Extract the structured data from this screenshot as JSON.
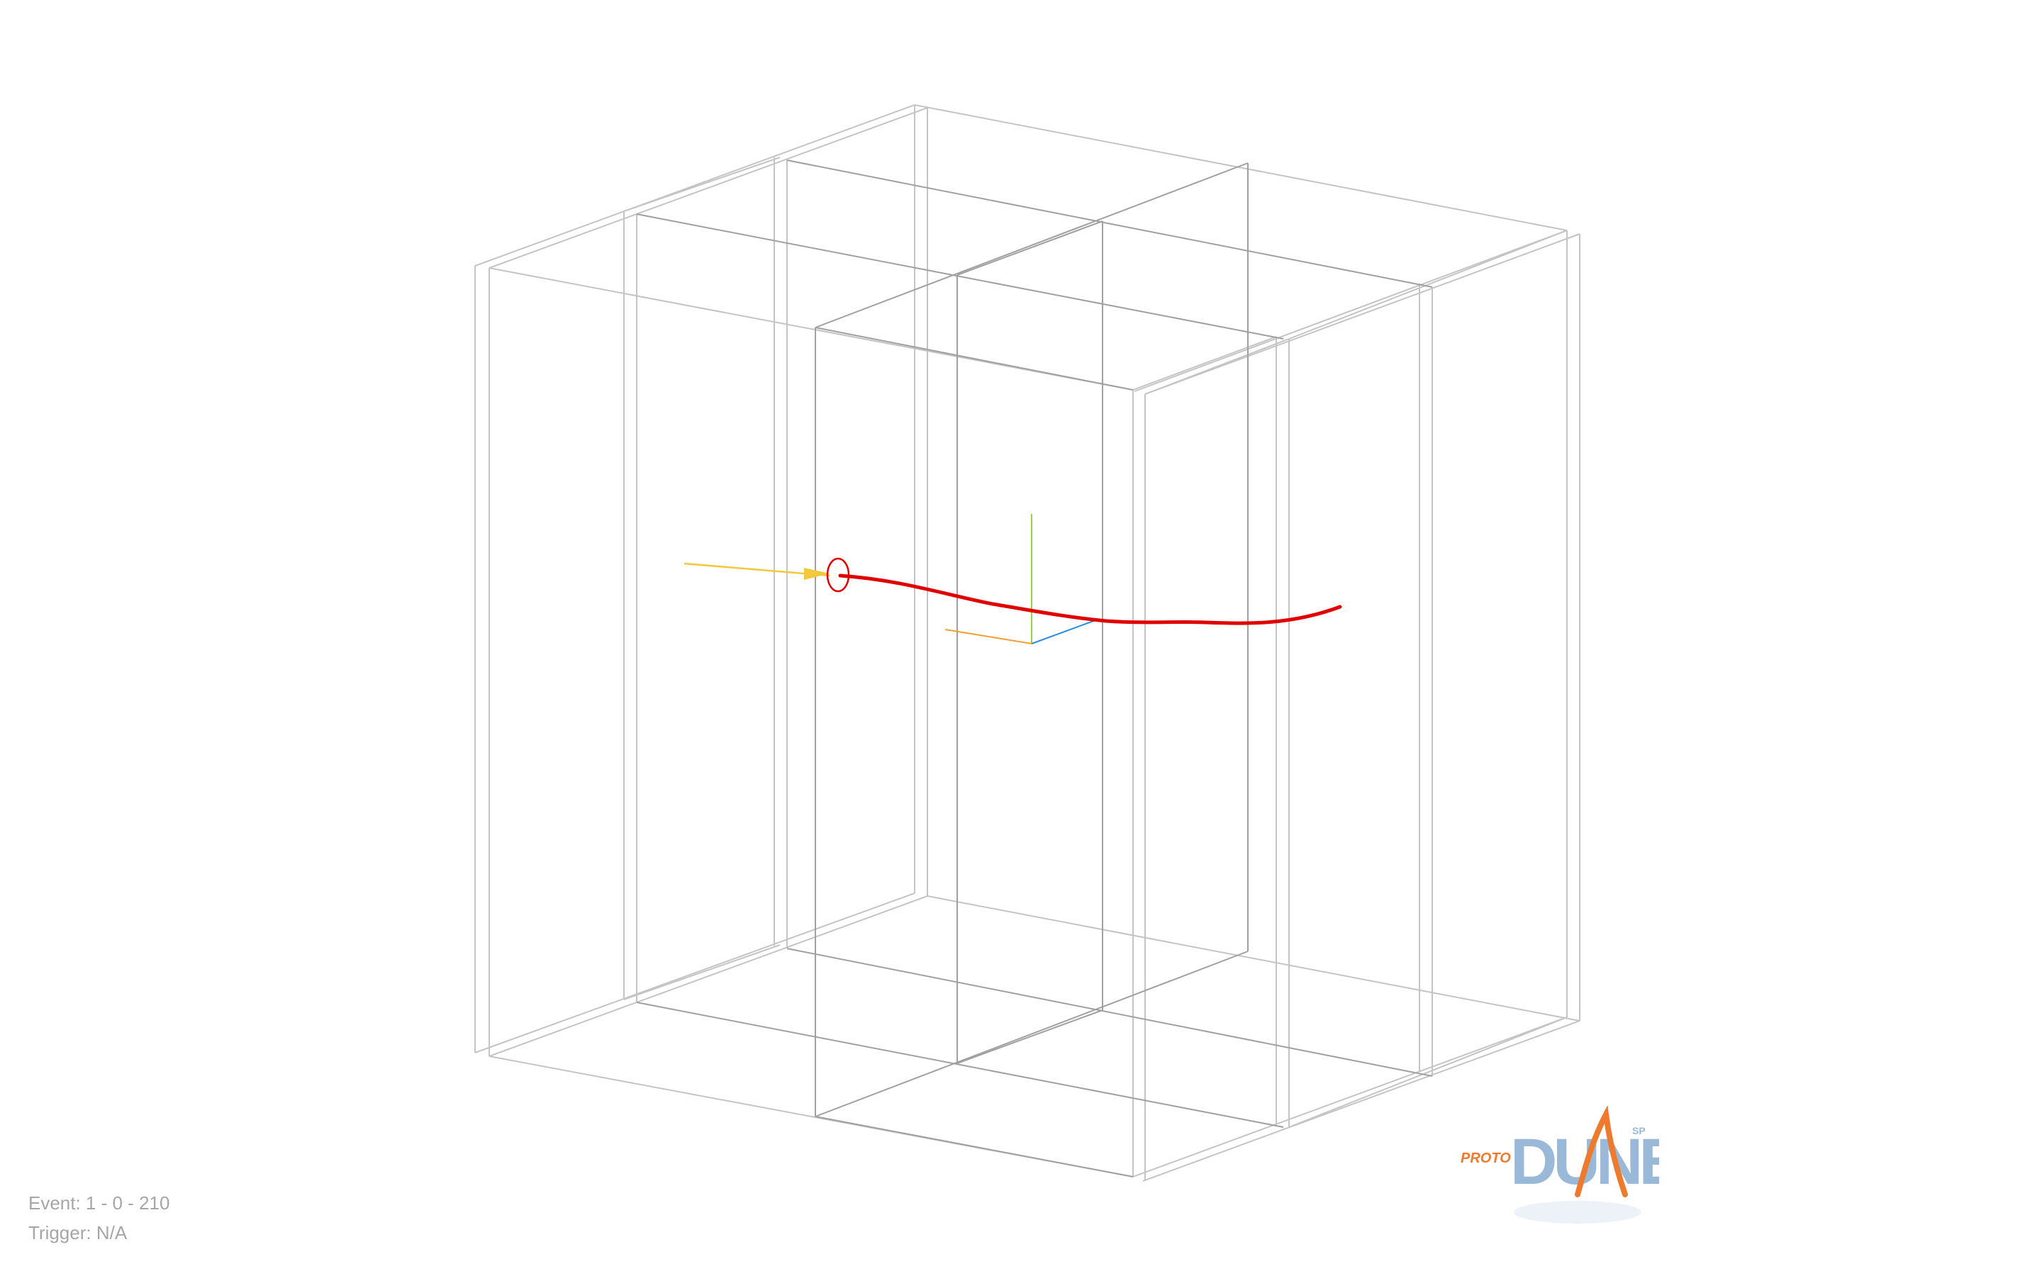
{
  "viewer": {
    "name": "event-display-3d",
    "colors": {
      "background": "#ffffff",
      "detector_lines": "#bdbdbd",
      "inner_lines": "#9a9a9a",
      "track": "#e00000",
      "beam": "#f5c83b",
      "vertex_marker": "#e00000",
      "axis_x": "#2a8ee0",
      "axis_y": "#8fd93a",
      "axis_z": "#f0a030"
    }
  },
  "event_info": {
    "event_label": "Event: 1 - 0 - 210",
    "trigger_label": "Trigger: N/A"
  },
  "logo": {
    "prefix": "PROTO",
    "name": "DUNE",
    "superscript": "SP",
    "colors": {
      "dune_blue": "#9ab9d8",
      "orange": "#ee7a2e"
    }
  }
}
